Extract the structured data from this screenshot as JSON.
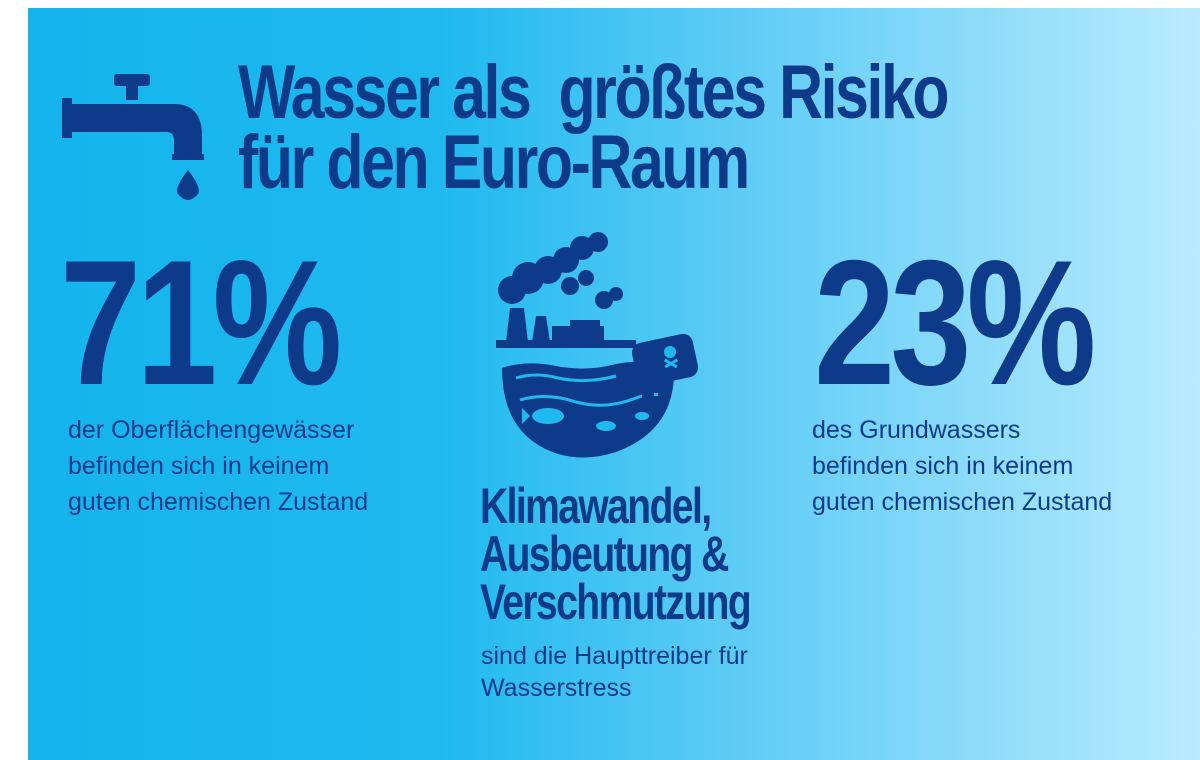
{
  "header": {
    "title_line1": "Wasser als  größtes Risiko",
    "title_line2": "für den Euro-Raum",
    "icon": "water-tap-icon"
  },
  "stats": {
    "left": {
      "value": "71%",
      "desc_line1": "der Oberflächengewässer",
      "desc_line2": "befinden sich in keinem",
      "desc_line3": "guten chemischen Zustand"
    },
    "right": {
      "value": "23%",
      "desc_line1": "des Grundwassers",
      "desc_line2": "befinden sich in keinem",
      "desc_line3": "guten chemischen Zustand"
    }
  },
  "center": {
    "illustration": "pollution-illustration-icon",
    "drivers_line1": "Klimawandel,",
    "drivers_line2": "Ausbeutung &",
    "drivers_line3": "Verschmutzung",
    "sub_line1": "sind die Haupttreiber für",
    "sub_line2": "Wasserstress"
  },
  "colors": {
    "primary_text": "#0d3b8a",
    "gradient_start": "#14b4ee",
    "gradient_end": "#b9ebfe"
  }
}
